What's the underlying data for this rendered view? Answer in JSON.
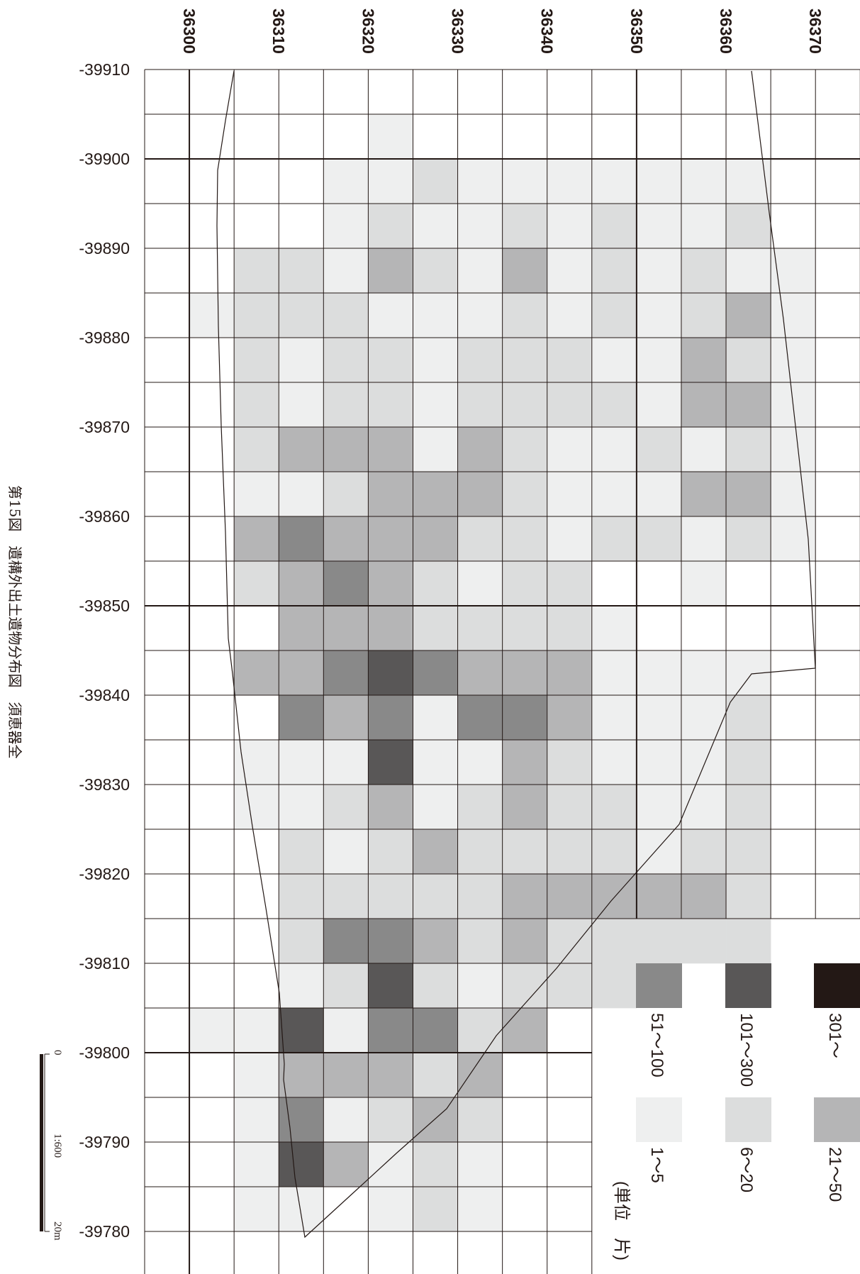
{
  "title": "第15図　遺構外出土遺物分布図　須恵器全",
  "x_labels": [
    "36300",
    "36310",
    "36320",
    "36330",
    "36340",
    "36350",
    "36360",
    "36370"
  ],
  "y_labels": [
    "-39910",
    "-39900",
    "-39890",
    "-39880",
    "-39870",
    "-39860",
    "-39850",
    "-39840",
    "-39830",
    "-39820",
    "-39810",
    "-39800",
    "-39790",
    "-39780"
  ],
  "legend": {
    "unit": "(単位　片)",
    "classes": [
      {
        "label": "301～",
        "color": "#231815"
      },
      {
        "label": "101～300",
        "color": "#595757"
      },
      {
        "label": "51～100",
        "color": "#898989"
      },
      {
        "label": "21～50",
        "color": "#b5b5b6"
      },
      {
        "label": "6～20",
        "color": "#dcdddd"
      },
      {
        "label": "1～5",
        "color": "#eeefef"
      }
    ]
  },
  "scale_bar": {
    "start": "0",
    "ratio": "1:600",
    "end": "20m"
  },
  "counts_class_grid": [
    "0,0,0,0,0,0,0,0,0,0,0,0,0,0,0,0,0,0,0,0,0,0,0,0,0,0,0",
    "0,0,0,0,0,1,0,0,0,0,0,0,0,0,0,0,0,0,0,0,0,1,0,0,0,0,0",
    "0,0,0,0,2,2,2,2,2,1,3,2,0,3,0,1,1,0,0,0,0,1,1,1,1,1,0",
    "0,0,0,0,2,2,1,1,3,1,4,3,3,3,4,1,1,2,2,2,1,5,3,4,5,1,0",
    "0,0,1,1,1,2,2,2,3,2,3,4,3,4,3,1,2,1,2,4,2,1,3,1,3,0,0",
    "0,1,1,2,3,1,2,2,3,3,3,3,3,5,4,5,3,2,2,4,5,4,3,2,1,1,0",
    "0,0,2,1,2,1,1,1,1,3,3,2,2,4,1,1,1,3,2,3,2,4,2,3,2,2,0",
    "0,0,1,1,1,1,2,2,3,3,2,1,2,3,4,1,2,2,2,2,1,2,3,2,1,1,0",
    "0,0,1,2,3,2,2,2,2,2,2,2,2,3,4,3,3,2,3,3,2,3,0,0,0,0,0",
    "0,0,1,1,1,1,2,2,1,1,1,2,2,3,3,2,2,2,3,2,2,0,0,0,0,0,0",
    "0,0,1,2,2,2,1,2,1,1,2,0,1,1,1,1,2,2,3,2,2,0,0,0,0,0,0",
    "0,0,1,1,1,1,1,1,2,1,2,0,0,1,1,1,1,1,3,2,0,0,0,0,0,0,0",
    "0,0,1,1,2,2,3,3,1,3,1,1,0,1,1,1,1,2,3,2,0,0,0,0,0,0,0",
    "0,0,1,2,1,3,2,3,2,3,2,0,0,1,2,2,2,2,2,2,0,0,0,0,0,0,0",
    "0,0,0,0,1,1,1,1,1,1,1,0,0,0,0,0,0,0,0,0,0,0,0,0,0,0,0",
    "0,0,0,0,0,0,0,0,0,0,0,0,0,0,0,0,0,0,0,0,0,0,0,0,0,0,0"
  ]
}
